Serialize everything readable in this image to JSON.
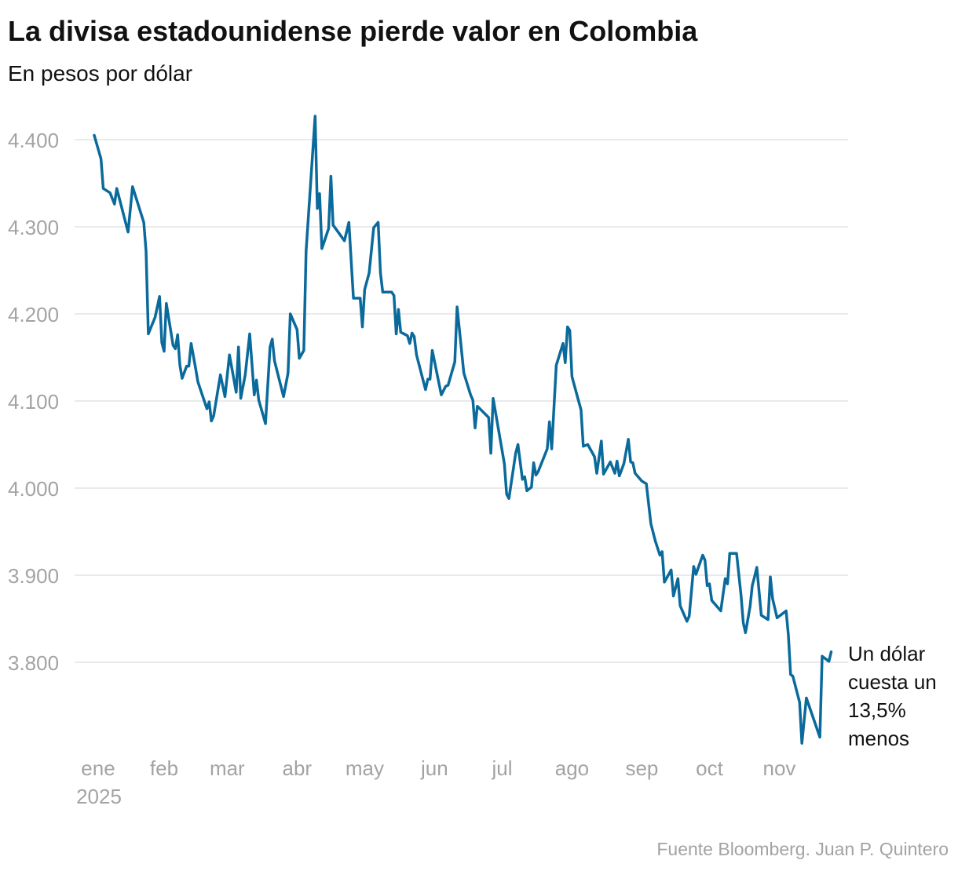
{
  "chart_data": {
    "type": "line",
    "title": "La divisa estadounidense pierde valor en Colombia",
    "subtitle": "En pesos por dólar",
    "source": "Fuente Bloomberg. Juan P. Quintero",
    "ylim": [
      3700,
      4430
    ],
    "yticks": [
      3800,
      3900,
      4000,
      4100,
      4200,
      4300,
      4400
    ],
    "ytick_labels": [
      "3.800",
      "3.900",
      "4.000",
      "4.100",
      "4.200",
      "4.300",
      "4.400"
    ],
    "xticks": [
      "2025-01-01",
      "2025-02-01",
      "2025-03-01",
      "2025-04-01",
      "2025-05-01",
      "2025-06-01",
      "2025-07-01",
      "2025-08-01",
      "2025-09-01",
      "2025-10-01",
      "2025-11-01"
    ],
    "xtick_labels": [
      "ene",
      "feb",
      "mar",
      "abr",
      "may",
      "jun",
      "jul",
      "ago",
      "sep",
      "oct",
      "nov"
    ],
    "xtick_year": "2025",
    "grid": "horizontal",
    "line_color": "#0a6a9b",
    "grid_color": "#e3e3e3",
    "annotation": [
      "Un dólar",
      "cuesta un",
      "13,5%",
      "menos"
    ],
    "series": [
      {
        "points": [
          [
            "2025-01-01",
            4405
          ],
          [
            "2025-01-04",
            4378
          ],
          [
            "2025-01-05",
            4344
          ],
          [
            "2025-01-08",
            4339
          ],
          [
            "2025-01-10",
            4326
          ],
          [
            "2025-01-11",
            4344
          ],
          [
            "2025-01-16",
            4294
          ],
          [
            "2025-01-18",
            4346
          ],
          [
            "2025-01-23",
            4305
          ],
          [
            "2025-01-24",
            4272
          ],
          [
            "2025-01-25",
            4177
          ],
          [
            "2025-01-28",
            4196
          ],
          [
            "2025-01-30",
            4220
          ],
          [
            "2025-01-31",
            4167
          ],
          [
            "2025-02-01",
            4157
          ],
          [
            "2025-02-02",
            4212
          ],
          [
            "2025-02-05",
            4164
          ],
          [
            "2025-02-06",
            4160
          ],
          [
            "2025-02-07",
            4176
          ],
          [
            "2025-02-08",
            4141
          ],
          [
            "2025-02-09",
            4126
          ],
          [
            "2025-02-11",
            4140
          ],
          [
            "2025-02-12",
            4140
          ],
          [
            "2025-02-13",
            4166
          ],
          [
            "2025-02-15",
            4137
          ],
          [
            "2025-02-16",
            4122
          ],
          [
            "2025-02-20",
            4091
          ],
          [
            "2025-02-21",
            4099
          ],
          [
            "2025-02-22",
            4077
          ],
          [
            "2025-02-23",
            4083
          ],
          [
            "2025-02-26",
            4130
          ],
          [
            "2025-02-28",
            4105
          ],
          [
            "2025-03-02",
            4153
          ],
          [
            "2025-03-05",
            4110
          ],
          [
            "2025-03-06",
            4162
          ],
          [
            "2025-03-07",
            4103
          ],
          [
            "2025-03-09",
            4130
          ],
          [
            "2025-03-11",
            4177
          ],
          [
            "2025-03-13",
            4107
          ],
          [
            "2025-03-14",
            4124
          ],
          [
            "2025-03-15",
            4101
          ],
          [
            "2025-03-18",
            4074
          ],
          [
            "2025-03-20",
            4162
          ],
          [
            "2025-03-21",
            4171
          ],
          [
            "2025-03-22",
            4146
          ],
          [
            "2025-03-26",
            4105
          ],
          [
            "2025-03-28",
            4132
          ],
          [
            "2025-03-29",
            4200
          ],
          [
            "2025-04-01",
            4182
          ],
          [
            "2025-04-02",
            4149
          ],
          [
            "2025-04-04",
            4158
          ],
          [
            "2025-04-05",
            4272
          ],
          [
            "2025-04-09",
            4427
          ],
          [
            "2025-04-10",
            4321
          ],
          [
            "2025-04-11",
            4338
          ],
          [
            "2025-04-12",
            4275
          ],
          [
            "2025-04-15",
            4298
          ],
          [
            "2025-04-16",
            4358
          ],
          [
            "2025-04-17",
            4302
          ],
          [
            "2025-04-22",
            4284
          ],
          [
            "2025-04-24",
            4305
          ],
          [
            "2025-04-26",
            4218
          ],
          [
            "2025-04-29",
            4218
          ],
          [
            "2025-04-30",
            4185
          ],
          [
            "2025-05-01",
            4228
          ],
          [
            "2025-05-03",
            4247
          ],
          [
            "2025-05-05",
            4299
          ],
          [
            "2025-05-07",
            4305
          ],
          [
            "2025-05-08",
            4247
          ],
          [
            "2025-05-09",
            4225
          ],
          [
            "2025-05-13",
            4225
          ],
          [
            "2025-05-14",
            4221
          ],
          [
            "2025-05-15",
            4177
          ],
          [
            "2025-05-16",
            4205
          ],
          [
            "2025-05-17",
            4179
          ],
          [
            "2025-05-20",
            4175
          ],
          [
            "2025-05-21",
            4166
          ],
          [
            "2025-05-22",
            4178
          ],
          [
            "2025-05-23",
            4174
          ],
          [
            "2025-05-24",
            4153
          ],
          [
            "2025-05-28",
            4113
          ],
          [
            "2025-05-29",
            4125
          ],
          [
            "2025-05-30",
            4125
          ],
          [
            "2025-05-31",
            4158
          ],
          [
            "2025-06-04",
            4107
          ],
          [
            "2025-06-06",
            4117
          ],
          [
            "2025-06-07",
            4118
          ],
          [
            "2025-06-10",
            4145
          ],
          [
            "2025-06-11",
            4208
          ],
          [
            "2025-06-14",
            4132
          ],
          [
            "2025-06-17",
            4107
          ],
          [
            "2025-06-18",
            4101
          ],
          [
            "2025-06-19",
            4069
          ],
          [
            "2025-06-20",
            4094
          ],
          [
            "2025-06-25",
            4081
          ],
          [
            "2025-06-26",
            4040
          ],
          [
            "2025-06-27",
            4103
          ],
          [
            "2025-07-02",
            4028
          ],
          [
            "2025-07-03",
            3993
          ],
          [
            "2025-07-04",
            3988
          ],
          [
            "2025-07-07",
            4040
          ],
          [
            "2025-07-08",
            4050
          ],
          [
            "2025-07-10",
            4010
          ],
          [
            "2025-07-11",
            4013
          ],
          [
            "2025-07-12",
            3997
          ],
          [
            "2025-07-14",
            4001
          ],
          [
            "2025-07-15",
            4029
          ],
          [
            "2025-07-16",
            4015
          ],
          [
            "2025-07-17",
            4019
          ],
          [
            "2025-07-21",
            4045
          ],
          [
            "2025-07-22",
            4076
          ],
          [
            "2025-07-23",
            4045
          ],
          [
            "2025-07-25",
            4141
          ],
          [
            "2025-07-28",
            4166
          ],
          [
            "2025-07-29",
            4144
          ],
          [
            "2025-07-30",
            4185
          ],
          [
            "2025-07-31",
            4181
          ],
          [
            "2025-08-01",
            4128
          ],
          [
            "2025-08-04",
            4099
          ],
          [
            "2025-08-05",
            4090
          ],
          [
            "2025-08-06",
            4048
          ],
          [
            "2025-08-08",
            4050
          ],
          [
            "2025-08-11",
            4036
          ],
          [
            "2025-08-12",
            4017
          ],
          [
            "2025-08-14",
            4054
          ],
          [
            "2025-08-15",
            4016
          ],
          [
            "2025-08-18",
            4030
          ],
          [
            "2025-08-20",
            4017
          ],
          [
            "2025-08-21",
            4031
          ],
          [
            "2025-08-22",
            4014
          ],
          [
            "2025-08-24",
            4028
          ],
          [
            "2025-08-26",
            4056
          ],
          [
            "2025-08-27",
            4030
          ],
          [
            "2025-08-28",
            4029
          ],
          [
            "2025-08-29",
            4017
          ],
          [
            "2025-09-01",
            4008
          ],
          [
            "2025-09-03",
            4005
          ],
          [
            "2025-09-05",
            3959
          ],
          [
            "2025-09-07",
            3939
          ],
          [
            "2025-09-09",
            3923
          ],
          [
            "2025-09-10",
            3927
          ],
          [
            "2025-09-11",
            3892
          ],
          [
            "2025-09-14",
            3906
          ],
          [
            "2025-09-15",
            3876
          ],
          [
            "2025-09-17",
            3896
          ],
          [
            "2025-09-18",
            3865
          ],
          [
            "2025-09-21",
            3847
          ],
          [
            "2025-09-22",
            3853
          ],
          [
            "2025-09-24",
            3910
          ],
          [
            "2025-09-25",
            3901
          ],
          [
            "2025-09-28",
            3923
          ],
          [
            "2025-09-29",
            3917
          ],
          [
            "2025-09-30",
            3888
          ],
          [
            "2025-10-01",
            3890
          ],
          [
            "2025-10-02",
            3871
          ],
          [
            "2025-10-06",
            3859
          ],
          [
            "2025-10-08",
            3896
          ],
          [
            "2025-10-09",
            3890
          ],
          [
            "2025-10-10",
            3925
          ],
          [
            "2025-10-13",
            3925
          ],
          [
            "2025-10-15",
            3877
          ],
          [
            "2025-10-16",
            3845
          ],
          [
            "2025-10-17",
            3834
          ],
          [
            "2025-10-19",
            3864
          ],
          [
            "2025-10-20",
            3888
          ],
          [
            "2025-10-21",
            3898
          ],
          [
            "2025-10-22",
            3909
          ],
          [
            "2025-10-24",
            3854
          ],
          [
            "2025-10-27",
            3849
          ],
          [
            "2025-10-28",
            3898
          ],
          [
            "2025-10-29",
            3873
          ],
          [
            "2025-10-31",
            3851
          ],
          [
            "2025-11-04",
            3859
          ],
          [
            "2025-11-05",
            3831
          ],
          [
            "2025-11-06",
            3786
          ],
          [
            "2025-11-07",
            3784
          ],
          [
            "2025-11-10",
            3754
          ],
          [
            "2025-11-11",
            3707
          ],
          [
            "2025-11-13",
            3759
          ],
          [
            "2025-11-19",
            3714
          ],
          [
            "2025-11-20",
            3807
          ],
          [
            "2025-11-23",
            3801
          ],
          [
            "2025-11-24",
            3812
          ]
        ]
      }
    ]
  }
}
